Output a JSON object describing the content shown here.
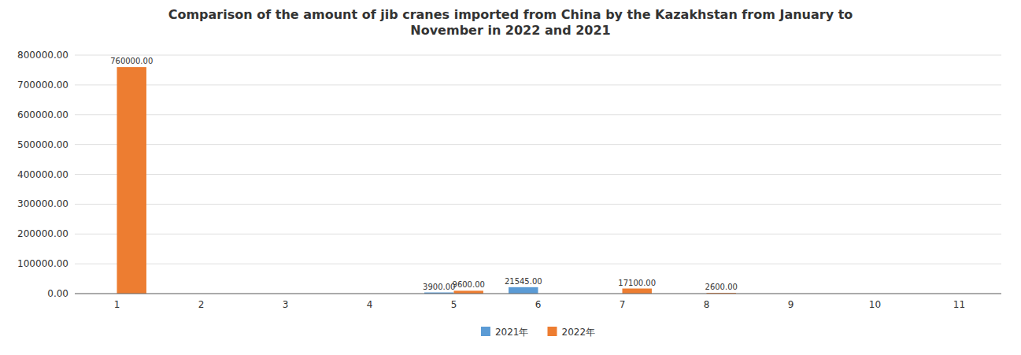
{
  "chart_data": {
    "type": "bar",
    "title": "Comparison of the amount of jib cranes imported from China by the Kazakhstan from January to\nNovember in 2022 and 2021",
    "categories": [
      "1",
      "2",
      "3",
      "4",
      "5",
      "6",
      "7",
      "8",
      "9",
      "10",
      "11"
    ],
    "series": [
      {
        "name": "2021年",
        "color": "#5B9BD5",
        "values": [
          0,
          0,
          0,
          0,
          3900,
          21545,
          0,
          0,
          0,
          0,
          0
        ],
        "value_labels": [
          null,
          null,
          null,
          null,
          "3900.00",
          "21545.00",
          null,
          null,
          null,
          null,
          null
        ]
      },
      {
        "name": "2022年",
        "color": "#ED7D31",
        "values": [
          760000,
          0,
          0,
          0,
          9600,
          0,
          17100,
          2600,
          0,
          0,
          0
        ],
        "value_labels": [
          "760000.00",
          null,
          null,
          null,
          "9600.00",
          null,
          "17100.00",
          "2600.00",
          null,
          null,
          null
        ]
      }
    ],
    "ylim": [
      0,
      800000
    ],
    "yticks": [
      {
        "value": 0,
        "label": "0.00"
      },
      {
        "value": 100000,
        "label": "100000.00"
      },
      {
        "value": 200000,
        "label": "200000.00"
      },
      {
        "value": 300000,
        "label": "300000.00"
      },
      {
        "value": 400000,
        "label": "400000.00"
      },
      {
        "value": 500000,
        "label": "500000.00"
      },
      {
        "value": 600000,
        "label": "600000.00"
      },
      {
        "value": 700000,
        "label": "700000.00"
      },
      {
        "value": 800000,
        "label": "800000.00"
      }
    ],
    "grid": true,
    "legend": "bottom",
    "data_labels": true
  }
}
